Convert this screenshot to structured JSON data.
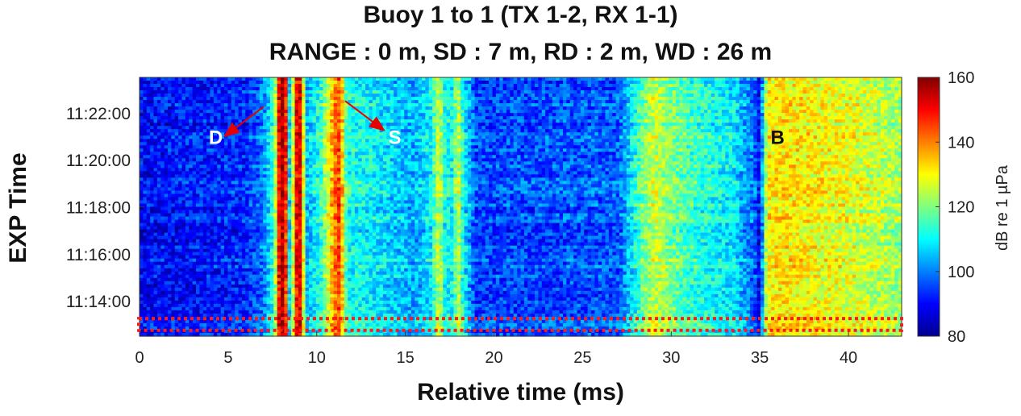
{
  "titles": {
    "line1": "Buoy 1 to 1 (TX 1-2, RX 1-1)",
    "line2": "RANGE : 0 m, SD : 7 m, RD : 2 m, WD : 26 m"
  },
  "chart_data": {
    "type": "heatmap",
    "xlabel": "Relative time (ms)",
    "ylabel": "EXP Time",
    "xlim": [
      0,
      43
    ],
    "xticks": [
      0,
      5,
      10,
      15,
      20,
      25,
      30,
      35,
      40
    ],
    "yticks": [
      "11:14:00",
      "11:16:00",
      "11:18:00",
      "11:20:00",
      "11:22:00"
    ],
    "ylim": [
      "11:12:30",
      "11:23:30"
    ],
    "colorbar": {
      "label": "dB re 1 µPa",
      "range": [
        80,
        160
      ],
      "ticks": [
        80,
        100,
        120,
        140,
        160
      ],
      "colormap": "jet"
    },
    "profile_db": [
      {
        "t": 0,
        "db": 90
      },
      {
        "t": 6,
        "db": 93
      },
      {
        "t": 7,
        "db": 100
      },
      {
        "t": 7.6,
        "db": 115
      },
      {
        "t": 7.9,
        "db": 155
      },
      {
        "t": 8.2,
        "db": 158
      },
      {
        "t": 8.5,
        "db": 100
      },
      {
        "t": 8.8,
        "db": 150
      },
      {
        "t": 9.1,
        "db": 152
      },
      {
        "t": 9.4,
        "db": 105
      },
      {
        "t": 10.2,
        "db": 112
      },
      {
        "t": 11.0,
        "db": 140
      },
      {
        "t": 11.3,
        "db": 145
      },
      {
        "t": 11.7,
        "db": 112
      },
      {
        "t": 13,
        "db": 110
      },
      {
        "t": 15.5,
        "db": 103
      },
      {
        "t": 16.5,
        "db": 110
      },
      {
        "t": 16.9,
        "db": 128
      },
      {
        "t": 17.2,
        "db": 112
      },
      {
        "t": 17.6,
        "db": 110
      },
      {
        "t": 18.0,
        "db": 125
      },
      {
        "t": 18.3,
        "db": 110
      },
      {
        "t": 19,
        "db": 95
      },
      {
        "t": 27,
        "db": 97
      },
      {
        "t": 28.4,
        "db": 118
      },
      {
        "t": 29,
        "db": 126
      },
      {
        "t": 30,
        "db": 120
      },
      {
        "t": 31,
        "db": 115
      },
      {
        "t": 33.5,
        "db": 108
      },
      {
        "t": 34.7,
        "db": 98
      },
      {
        "t": 35.0,
        "db": 88
      },
      {
        "t": 35.4,
        "db": 130
      },
      {
        "t": 36,
        "db": 132
      },
      {
        "t": 40,
        "db": 128
      },
      {
        "t": 43,
        "db": 122
      }
    ],
    "annotations": [
      {
        "text": "D",
        "arrow_from": [
          7.0,
          "11:22:15"
        ],
        "arrow_to": [
          4.8,
          "11:21:00"
        ],
        "label_at": [
          4.3,
          "11:20:40"
        ],
        "color": "#ffffff"
      },
      {
        "text": "S",
        "arrow_from": [
          11.6,
          "11:22:30"
        ],
        "arrow_to": [
          13.8,
          "11:21:15"
        ],
        "label_at": [
          14.4,
          "11:20:40"
        ],
        "color": "#ffffff"
      },
      {
        "text": "B",
        "arrow_from": null,
        "arrow_to": null,
        "label_at": [
          36.0,
          "11:20:40"
        ],
        "color": "#111111"
      }
    ],
    "highlight_box": {
      "x_range": [
        0,
        43
      ],
      "y_range": [
        "11:12:45",
        "11:13:15"
      ],
      "color": "#ff1a1a",
      "style": "dotted"
    }
  }
}
